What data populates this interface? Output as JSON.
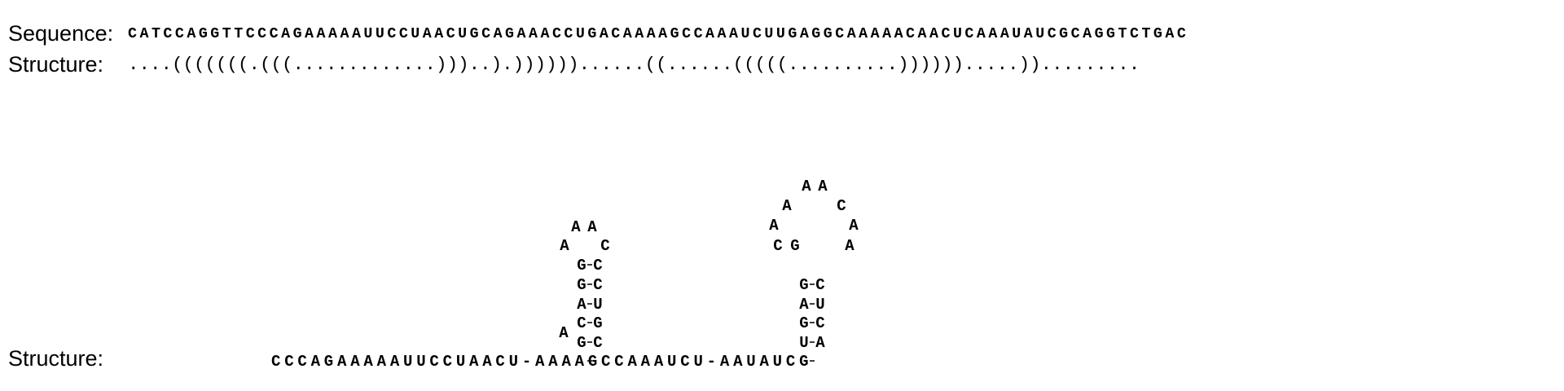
{
  "header": {
    "sequence_label": "Sequence:",
    "sequence": "CATCCAGGTTCCCAGAAAAAUUCCUAACUGCAGAAACCUGACAAAAGCCAAAUCUUGAGGCAAAAACAACUCAAAUAUCGCAGGTCTGAC",
    "structure_label": "Structure:",
    "structure": "....(((((((.(((.............)))..).))))))......((......(((((..........)))))).....))........."
  },
  "diagram": {
    "label": "Structure:",
    "baseline": "CCCAGAAAAAUUCCUAACU-AAAAGCCAAAUCU-AAUAUCG",
    "hairpin1": {
      "pairs": [
        {
          "left": "G",
          "right": "C"
        },
        {
          "left": "C",
          "right": "G"
        },
        {
          "left": "A",
          "right": "U"
        },
        {
          "left": "G",
          "right": "C"
        },
        {
          "left": "G",
          "right": "C"
        }
      ],
      "bulge": "A",
      "loop": [
        "A",
        "A",
        "A",
        "C"
      ]
    },
    "hairpin2": {
      "pairs": [
        {
          "left": "U",
          "right": "A"
        },
        {
          "left": "G",
          "right": "C"
        },
        {
          "left": "A",
          "right": "U"
        },
        {
          "left": "G",
          "right": "C"
        }
      ],
      "loop": [
        "G",
        "C",
        "A",
        "A",
        "A",
        "A",
        "C",
        "A",
        "A"
      ]
    }
  }
}
